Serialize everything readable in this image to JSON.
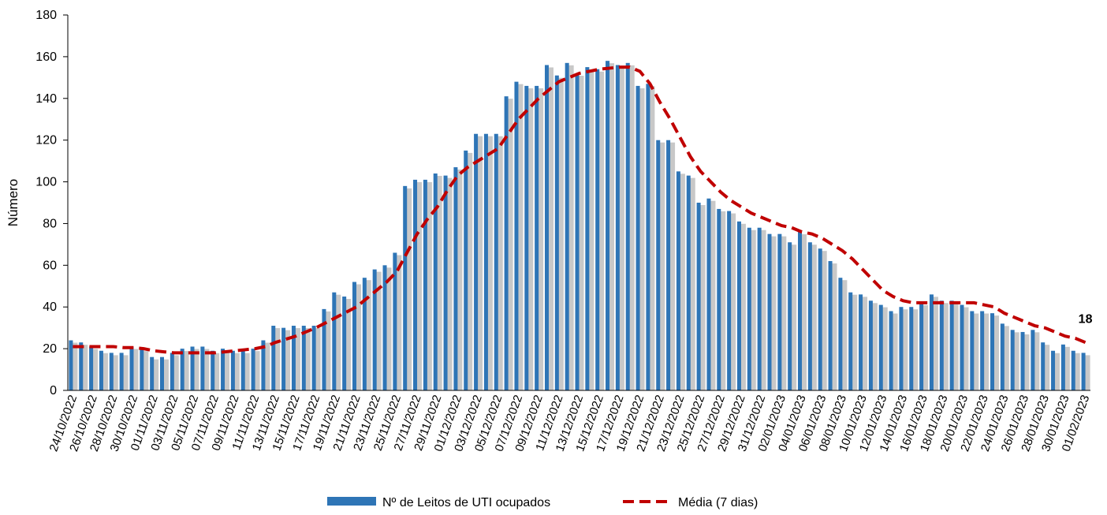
{
  "chart_data": {
    "type": "bar-line",
    "y_label": "Número",
    "categories": [
      "24/10/2022",
      null,
      "26/10/2022",
      null,
      "28/10/2022",
      null,
      "30/10/2022",
      null,
      "01/11/2022",
      null,
      "03/11/2022",
      null,
      "05/11/2022",
      null,
      "07/11/2022",
      null,
      "09/11/2022",
      null,
      "11/11/2022",
      null,
      "13/11/2022",
      null,
      "15/11/2022",
      null,
      "17/11/2022",
      null,
      "19/11/2022",
      null,
      "21/11/2022",
      null,
      "23/11/2022",
      null,
      "25/11/2022",
      null,
      "27/11/2022",
      null,
      "29/11/2022",
      null,
      "01/12/2022",
      null,
      "03/12/2022",
      null,
      "05/12/2022",
      null,
      "07/12/2022",
      null,
      "09/12/2022",
      null,
      "11/12/2022",
      null,
      "13/12/2022",
      null,
      "15/12/2022",
      null,
      "17/12/2022",
      null,
      "19/12/2022",
      null,
      "21/12/2022",
      null,
      "23/12/2022",
      null,
      "25/12/2022",
      null,
      "27/12/2022",
      null,
      "29/12/2022",
      null,
      "31/12/2022",
      null,
      "02/01/2023",
      null,
      "04/01/2023",
      null,
      "06/01/2023",
      null,
      "08/01/2023",
      null,
      "10/01/2023",
      null,
      "12/01/2023",
      null,
      "14/01/2023",
      null,
      "16/01/2023",
      null,
      "18/01/2023",
      null,
      "20/01/2023",
      null,
      "22/01/2023",
      null,
      "24/01/2023",
      null,
      "26/01/2023",
      null,
      "28/01/2023",
      null,
      "30/01/2023",
      null,
      "01/02/2023"
    ],
    "series": [
      {
        "name": "Nº de Leitos de UTI ocupados",
        "type": "bar",
        "color": "#2e75b6",
        "values": [
          24,
          23,
          21,
          19,
          18,
          18,
          21,
          20,
          16,
          16,
          18,
          20,
          21,
          21,
          19,
          20,
          19,
          19,
          20,
          24,
          31,
          30,
          31,
          31,
          31,
          39,
          47,
          45,
          52,
          54,
          58,
          60,
          66,
          98,
          101,
          101,
          104,
          103,
          107,
          115,
          123,
          123,
          123,
          141,
          148,
          146,
          146,
          156,
          151,
          157,
          152,
          155,
          154,
          158,
          156,
          157,
          146,
          147,
          120,
          120,
          105,
          103,
          90,
          92,
          87,
          86,
          81,
          78,
          78,
          75,
          75,
          71,
          76,
          71,
          68,
          62,
          54,
          47,
          46,
          43,
          41,
          38,
          40,
          40,
          42,
          46,
          43,
          43,
          41,
          38,
          38,
          37,
          32,
          29,
          28,
          29,
          23,
          19,
          22,
          19,
          18
        ],
        "labeled_index": 100
      },
      {
        "name": "Média (7 dias)",
        "type": "line",
        "color": "#c00000",
        "dashed": true,
        "values": [
          21,
          21,
          21,
          21,
          21,
          20.5,
          20.5,
          20,
          19,
          18.5,
          18,
          18,
          18,
          18,
          18,
          18.5,
          19,
          19.5,
          20,
          21,
          23,
          24.5,
          26,
          28,
          30,
          32.5,
          35,
          37.5,
          40,
          44,
          48,
          52,
          57,
          66,
          75,
          82,
          88,
          96,
          103,
          107,
          110,
          113,
          116,
          123,
          130,
          135,
          140,
          144,
          148,
          150,
          152,
          153,
          154,
          154.5,
          155,
          155,
          153,
          147,
          138,
          130,
          121,
          112,
          105,
          100,
          95,
          91,
          88,
          85,
          83,
          81,
          79,
          78,
          76,
          75,
          73,
          70,
          67,
          63,
          58,
          53,
          48,
          45,
          43,
          42,
          42,
          42,
          42,
          42,
          42,
          42,
          41,
          40,
          37,
          35,
          33,
          31,
          30,
          28,
          26,
          25,
          23
        ]
      }
    ],
    "ylim": [
      0,
      180
    ],
    "yticks": [
      0,
      20,
      40,
      60,
      80,
      100,
      120,
      140,
      160,
      180
    ],
    "grid": false,
    "legend": "bottom"
  }
}
